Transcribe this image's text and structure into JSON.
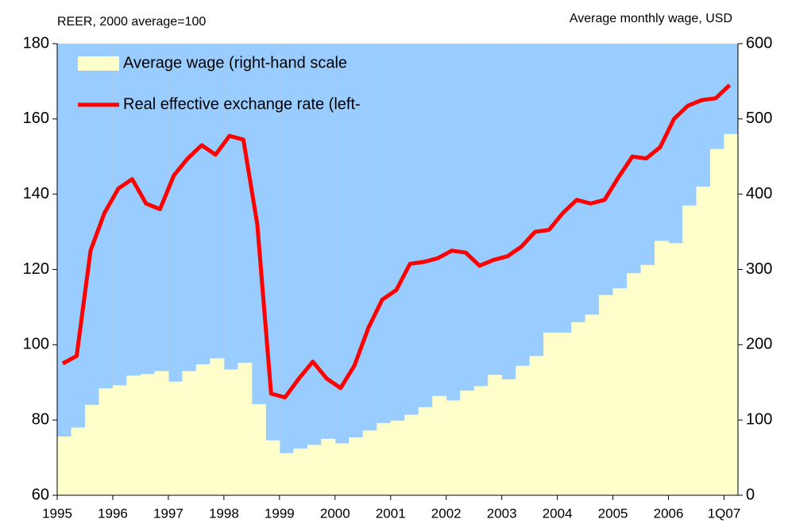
{
  "chart_data": {
    "type": "combo",
    "axis_title_left": "REER, 2000 average=100",
    "axis_title_right": "Average monthly wage, USD",
    "categories": [
      "1995",
      null,
      null,
      null,
      "1996",
      null,
      null,
      null,
      "1997",
      null,
      null,
      null,
      "1998",
      null,
      null,
      null,
      "1999",
      null,
      null,
      null,
      "2000",
      null,
      null,
      null,
      "2001",
      null,
      null,
      null,
      "2002",
      null,
      null,
      null,
      "2003",
      null,
      null,
      null,
      "2004",
      null,
      null,
      null,
      "2005",
      null,
      null,
      null,
      "2006",
      null,
      null,
      null,
      "1Q07"
    ],
    "series": [
      {
        "name": "Average wage (right-hand scale",
        "type": "step-area",
        "axis": "y2",
        "color": "#ffffcc",
        "values": [
          78,
          90,
          120,
          142,
          146,
          159,
          161,
          165,
          151,
          165,
          174,
          182,
          167,
          176,
          121,
          73,
          56,
          62,
          67,
          75,
          69,
          77,
          86,
          96,
          99,
          107,
          117,
          132,
          126,
          139,
          145,
          160,
          154,
          172,
          185,
          216,
          216,
          230,
          240,
          266,
          275,
          295,
          306,
          338,
          335,
          385,
          410,
          460,
          480
        ]
      },
      {
        "name": "Real effective exchange rate (left-",
        "type": "line",
        "axis": "y",
        "color": "#ff0000",
        "values": [
          95,
          97,
          125,
          135,
          141.5,
          144,
          137.5,
          136,
          145,
          149.5,
          153,
          150.5,
          155.5,
          154.5,
          132,
          87,
          86,
          91,
          95.5,
          91,
          88.5,
          94.5,
          104.5,
          112,
          114.5,
          121.5,
          122,
          123,
          125,
          124.5,
          121,
          122.5,
          123.5,
          126,
          130,
          130.5,
          135,
          138.5,
          137.5,
          138.5,
          144.5,
          150,
          149.5,
          152.5,
          160,
          163.5,
          165,
          165.5,
          169
        ]
      }
    ],
    "ylim": [
      60,
      180
    ],
    "yticks": [
      60,
      80,
      100,
      120,
      140,
      160,
      180
    ],
    "y2lim": [
      0,
      600
    ],
    "y2ticks": [
      0,
      100,
      200,
      300,
      400,
      500,
      600
    ],
    "plot_background": "#99ccff",
    "grid": true,
    "legend": "top-left"
  }
}
